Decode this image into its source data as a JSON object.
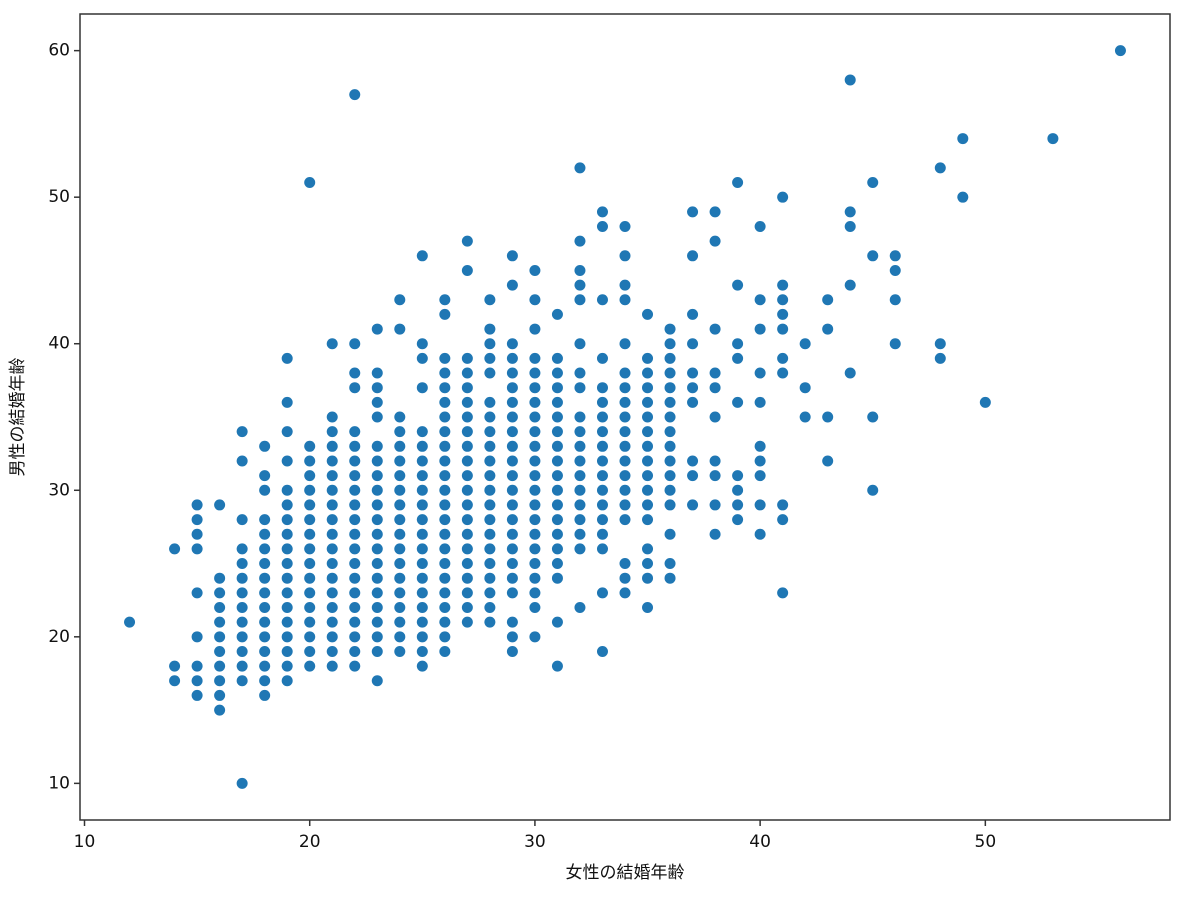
{
  "chart_data": {
    "type": "scatter",
    "color": "#1f77b4",
    "x_label": "女性の結婚年齢",
    "y_label": "男性の結婚年齢",
    "xlim": [
      9.8,
      58.2
    ],
    "ylim": [
      7.5,
      62.5
    ],
    "xticks": [
      10,
      20,
      30,
      40,
      50
    ],
    "yticks": [
      10,
      20,
      30,
      40,
      50,
      60
    ],
    "grid": false,
    "x": [
      12,
      14,
      14,
      14,
      15,
      15,
      15,
      15,
      15,
      15,
      15,
      15,
      15,
      16,
      16,
      16,
      16,
      16,
      16,
      16,
      16,
      16,
      16,
      16,
      17,
      17,
      17,
      17,
      17,
      17,
      17,
      17,
      17,
      17,
      17,
      17,
      17,
      17,
      18,
      18,
      18,
      18,
      18,
      18,
      18,
      18,
      18,
      18,
      18,
      18,
      18,
      18,
      18,
      18,
      19,
      19,
      19,
      19,
      19,
      19,
      19,
      19,
      19,
      19,
      19,
      19,
      19,
      19,
      19,
      19,
      19,
      19,
      20,
      20,
      20,
      20,
      20,
      20,
      20,
      20,
      20,
      20,
      20,
      20,
      20,
      20,
      20,
      20,
      20,
      21,
      21,
      21,
      21,
      21,
      21,
      21,
      21,
      21,
      21,
      21,
      21,
      21,
      21,
      21,
      21,
      21,
      21,
      21,
      22,
      22,
      22,
      22,
      22,
      22,
      22,
      22,
      22,
      22,
      22,
      22,
      22,
      22,
      22,
      22,
      22,
      22,
      22,
      22,
      22,
      23,
      23,
      23,
      23,
      23,
      23,
      23,
      23,
      23,
      23,
      23,
      23,
      23,
      23,
      23,
      23,
      23,
      23,
      23,
      23,
      23,
      24,
      24,
      24,
      24,
      24,
      24,
      24,
      24,
      24,
      24,
      24,
      24,
      24,
      24,
      24,
      24,
      24,
      24,
      24,
      25,
      25,
      25,
      25,
      25,
      25,
      25,
      25,
      25,
      25,
      25,
      25,
      25,
      25,
      25,
      25,
      25,
      25,
      25,
      25,
      25,
      26,
      26,
      26,
      26,
      26,
      26,
      26,
      26,
      26,
      26,
      26,
      26,
      26,
      26,
      26,
      26,
      26,
      26,
      26,
      26,
      26,
      26,
      26,
      27,
      27,
      27,
      27,
      27,
      27,
      27,
      27,
      27,
      27,
      27,
      27,
      27,
      27,
      27,
      27,
      27,
      27,
      27,
      27,
      27,
      28,
      28,
      28,
      28,
      28,
      28,
      28,
      28,
      28,
      28,
      28,
      28,
      28,
      28,
      28,
      28,
      28,
      28,
      28,
      28,
      28,
      29,
      29,
      29,
      29,
      29,
      29,
      29,
      29,
      29,
      29,
      29,
      29,
      29,
      29,
      29,
      29,
      29,
      29,
      29,
      29,
      29,
      29,
      29,
      30,
      30,
      30,
      30,
      30,
      30,
      30,
      30,
      30,
      30,
      30,
      30,
      30,
      30,
      30,
      30,
      30,
      30,
      30,
      30,
      30,
      30,
      31,
      31,
      31,
      31,
      31,
      31,
      31,
      31,
      31,
      31,
      31,
      31,
      31,
      31,
      31,
      31,
      31,
      31,
      31,
      32,
      32,
      32,
      32,
      32,
      32,
      32,
      32,
      32,
      32,
      32,
      32,
      32,
      32,
      32,
      32,
      32,
      32,
      32,
      33,
      33,
      33,
      33,
      33,
      33,
      33,
      33,
      33,
      33,
      33,
      33,
      33,
      33,
      33,
      33,
      33,
      33,
      34,
      34,
      34,
      34,
      34,
      34,
      34,
      34,
      34,
      34,
      34,
      34,
      34,
      34,
      34,
      34,
      34,
      34,
      34,
      35,
      35,
      35,
      35,
      35,
      35,
      35,
      35,
      35,
      35,
      35,
      35,
      35,
      35,
      35,
      35,
      35,
      36,
      36,
      36,
      36,
      36,
      36,
      36,
      36,
      36,
      36,
      36,
      36,
      36,
      36,
      36,
      36,
      37,
      37,
      37,
      37,
      37,
      37,
      37,
      37,
      37,
      37,
      38,
      38,
      38,
      38,
      38,
      38,
      38,
      38,
      38,
      38,
      39,
      39,
      39,
      39,
      39,
      39,
      39,
      39,
      39,
      40,
      40,
      40,
      40,
      40,
      40,
      40,
      40,
      40,
      40,
      41,
      41,
      41,
      41,
      41,
      41,
      41,
      41,
      41,
      41,
      42,
      42,
      42,
      43,
      43,
      43,
      43,
      44,
      44,
      44,
      44,
      44,
      45,
      45,
      45,
      45,
      46,
      46,
      46,
      46,
      48,
      48,
      48,
      49,
      49,
      50,
      53,
      56
    ],
    "y": [
      21,
      26,
      18,
      17,
      29,
      28,
      27,
      26,
      23,
      20,
      18,
      17,
      16,
      29,
      24,
      23,
      22,
      21,
      20,
      19,
      18,
      17,
      16,
      15,
      34,
      32,
      28,
      26,
      25,
      24,
      23,
      22,
      21,
      20,
      19,
      18,
      17,
      10,
      33,
      31,
      30,
      28,
      27,
      26,
      25,
      24,
      23,
      22,
      21,
      20,
      19,
      18,
      17,
      16,
      39,
      36,
      34,
      32,
      30,
      29,
      28,
      27,
      26,
      25,
      24,
      23,
      22,
      21,
      20,
      19,
      18,
      17,
      51,
      33,
      32,
      31,
      30,
      29,
      28,
      27,
      26,
      25,
      24,
      23,
      22,
      21,
      20,
      19,
      18,
      40,
      35,
      34,
      33,
      32,
      31,
      30,
      29,
      28,
      27,
      26,
      25,
      24,
      23,
      22,
      21,
      20,
      19,
      18,
      57,
      40,
      38,
      37,
      34,
      33,
      32,
      31,
      30,
      29,
      28,
      27,
      26,
      25,
      24,
      23,
      22,
      21,
      20,
      19,
      18,
      41,
      38,
      37,
      36,
      35,
      33,
      32,
      31,
      30,
      29,
      28,
      27,
      26,
      25,
      24,
      23,
      22,
      21,
      20,
      19,
      17,
      43,
      41,
      35,
      34,
      33,
      32,
      31,
      30,
      29,
      28,
      27,
      26,
      25,
      24,
      23,
      22,
      21,
      20,
      19,
      46,
      40,
      39,
      37,
      34,
      33,
      32,
      31,
      30,
      29,
      28,
      27,
      26,
      25,
      24,
      23,
      22,
      21,
      20,
      19,
      18,
      43,
      42,
      39,
      38,
      37,
      36,
      35,
      34,
      33,
      32,
      31,
      30,
      29,
      28,
      27,
      26,
      25,
      24,
      23,
      22,
      21,
      20,
      19,
      47,
      45,
      39,
      38,
      37,
      36,
      35,
      34,
      33,
      32,
      31,
      30,
      29,
      28,
      27,
      26,
      25,
      24,
      23,
      22,
      21,
      43,
      41,
      40,
      39,
      38,
      36,
      35,
      34,
      33,
      32,
      31,
      30,
      29,
      28,
      27,
      26,
      25,
      24,
      23,
      22,
      21,
      46,
      44,
      40,
      39,
      38,
      37,
      36,
      35,
      34,
      33,
      32,
      31,
      30,
      29,
      28,
      27,
      26,
      25,
      24,
      23,
      21,
      20,
      19,
      45,
      43,
      41,
      39,
      38,
      37,
      36,
      35,
      34,
      33,
      32,
      31,
      30,
      29,
      28,
      27,
      26,
      25,
      24,
      23,
      22,
      20,
      42,
      39,
      38,
      37,
      36,
      35,
      34,
      33,
      32,
      31,
      30,
      29,
      28,
      27,
      26,
      25,
      24,
      21,
      18,
      52,
      47,
      45,
      44,
      43,
      40,
      38,
      37,
      35,
      34,
      33,
      32,
      31,
      30,
      29,
      28,
      27,
      26,
      22,
      49,
      48,
      43,
      39,
      37,
      36,
      35,
      34,
      33,
      32,
      31,
      30,
      29,
      28,
      27,
      26,
      23,
      19,
      48,
      46,
      44,
      43,
      40,
      38,
      37,
      36,
      35,
      34,
      33,
      32,
      31,
      30,
      29,
      28,
      25,
      24,
      23,
      42,
      39,
      38,
      37,
      36,
      35,
      34,
      33,
      32,
      31,
      30,
      29,
      28,
      26,
      25,
      24,
      22,
      41,
      40,
      39,
      38,
      37,
      36,
      35,
      34,
      33,
      32,
      31,
      30,
      29,
      27,
      25,
      24,
      49,
      46,
      42,
      40,
      38,
      37,
      36,
      32,
      31,
      29,
      49,
      47,
      41,
      38,
      37,
      35,
      32,
      31,
      29,
      27,
      51,
      44,
      40,
      39,
      36,
      31,
      30,
      29,
      28,
      48,
      43,
      41,
      38,
      36,
      33,
      32,
      31,
      29,
      27,
      50,
      44,
      43,
      42,
      41,
      39,
      38,
      29,
      28,
      23,
      40,
      37,
      35,
      43,
      41,
      35,
      32,
      58,
      49,
      48,
      44,
      38,
      51,
      46,
      35,
      30,
      46,
      45,
      43,
      40,
      52,
      40,
      39,
      54,
      50,
      36,
      54,
      60
    ]
  }
}
